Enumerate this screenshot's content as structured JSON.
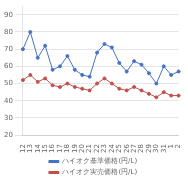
{
  "chart_data": {
    "type": "line",
    "categories": [
      "12",
      "13",
      "14",
      "15",
      "16",
      "17",
      "18",
      "19",
      "20",
      "21",
      "22",
      "23",
      "24",
      "25",
      "26",
      "27",
      "28",
      "29",
      "30",
      "31",
      "1",
      "2"
    ],
    "series": [
      {
        "name": "ハイオク基準価格(円/L)",
        "color": "#4472c4",
        "values": [
          70,
          80,
          65,
          72,
          58,
          60,
          66,
          58,
          55,
          54,
          68,
          73,
          71,
          62,
          57,
          63,
          61,
          56,
          50,
          60,
          55,
          57
        ]
      },
      {
        "name": "ハイオク実売価格(円/L)",
        "color": "#c0504d",
        "values": [
          52,
          55,
          51,
          53,
          49,
          48,
          50,
          48,
          47,
          46,
          50,
          53,
          50,
          47,
          46,
          48,
          46,
          44,
          42,
          45,
          43,
          43
        ]
      }
    ],
    "ylim": [
      20,
      95
    ],
    "yticks": [
      20,
      30,
      40,
      50,
      60,
      70,
      80,
      90
    ],
    "grid": true,
    "legend": "bottom"
  }
}
